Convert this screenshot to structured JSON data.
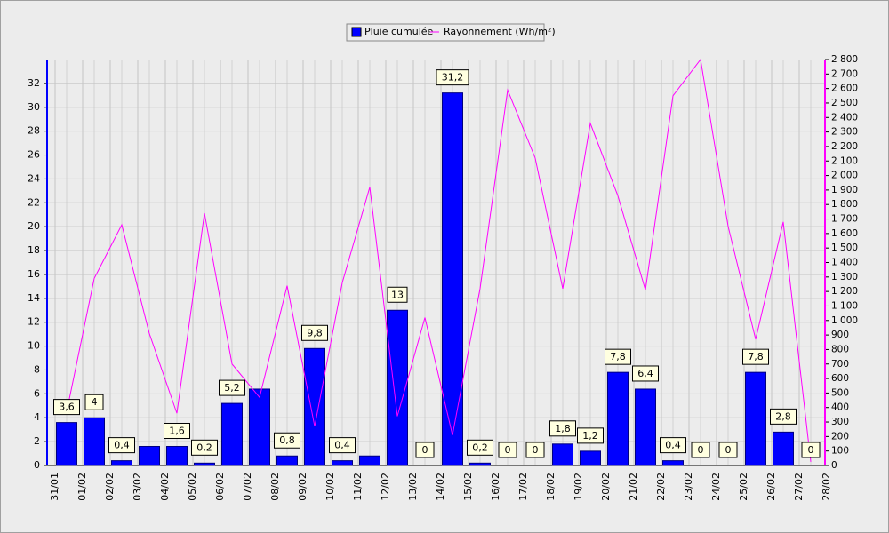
{
  "chart_data": {
    "type": "bar-line",
    "categories": [
      "31/01",
      "01/02",
      "02/02",
      "03/02",
      "04/02",
      "05/02",
      "06/02",
      "07/02",
      "08/02",
      "09/02",
      "10/02",
      "11/02",
      "12/02",
      "13/02",
      "14/02",
      "15/02",
      "16/02",
      "17/02",
      "18/02",
      "19/02",
      "20/02",
      "21/02",
      "22/02",
      "23/02",
      "24/02",
      "25/02",
      "26/02",
      "27/02",
      "28/02"
    ],
    "series": [
      {
        "name": "Pluie cumulée",
        "color": "#0000ff",
        "type": "bar",
        "values": [
          3.6,
          4,
          0.4,
          1.6,
          1.6,
          0.2,
          5.2,
          6.4,
          0.8,
          9.8,
          0.4,
          0.8,
          13,
          0,
          31.2,
          0.2,
          0,
          0,
          1.8,
          1.2,
          7.8,
          6.4,
          0.4,
          0,
          0,
          7.8,
          2.8,
          0,
          null
        ],
        "value_labels": [
          "3,6",
          "4",
          "0,4",
          null,
          "1,6",
          "0,2",
          "5,2",
          null,
          "0,8",
          "9,8",
          "0,4",
          null,
          "13",
          "0",
          "31,2",
          "0,2",
          "0",
          "0",
          "1,8",
          "1,2",
          "7,8",
          "6,4",
          "0,4",
          "0",
          "0",
          "7,8",
          "2,8",
          "0",
          null
        ]
      },
      {
        "name": "Rayonnement (Wh/m²)",
        "color": "#ff00ff",
        "type": "line",
        "axis": "y2",
        "values": [
          370,
          1290,
          1660,
          910,
          360,
          1740,
          700,
          470,
          1240,
          270,
          1260,
          1920,
          340,
          1020,
          210,
          1220,
          2590,
          2120,
          1220,
          2360,
          1860,
          1210,
          2550,
          2800,
          1650,
          870,
          1680,
          25,
          null
        ]
      }
    ],
    "ylim": [
      0,
      34
    ],
    "yticks": [
      0,
      2,
      4,
      6,
      8,
      10,
      12,
      14,
      16,
      18,
      20,
      22,
      24,
      26,
      28,
      30,
      32
    ],
    "y2lim": [
      0,
      2800
    ],
    "y2ticks": [
      0,
      100,
      200,
      300,
      400,
      500,
      600,
      700,
      800,
      900,
      {
        "value": 1000,
        "label": "1 000"
      },
      {
        "value": 1100,
        "label": "1 100"
      },
      {
        "value": 1200,
        "label": "1 200"
      },
      {
        "value": 1300,
        "label": "1 300"
      },
      {
        "value": 1400,
        "label": "1 400"
      },
      {
        "value": 1500,
        "label": "1 500"
      },
      {
        "value": 1600,
        "label": "1 600"
      },
      {
        "value": 1700,
        "label": "1 700"
      },
      {
        "value": 1800,
        "label": "1 800"
      },
      {
        "value": 1900,
        "label": "1 900"
      },
      {
        "value": 2000,
        "label": "2 000"
      },
      {
        "value": 2100,
        "label": "2 100"
      },
      {
        "value": 2200,
        "label": "2 200"
      },
      {
        "value": 2300,
        "label": "2 300"
      },
      {
        "value": 2400,
        "label": "2 400"
      },
      {
        "value": 2500,
        "label": "2 500"
      },
      {
        "value": 2600,
        "label": "2 600"
      },
      {
        "value": 2700,
        "label": "2 700"
      },
      {
        "value": 2800,
        "label": "2 800"
      }
    ],
    "grid": true,
    "legend": "top"
  }
}
